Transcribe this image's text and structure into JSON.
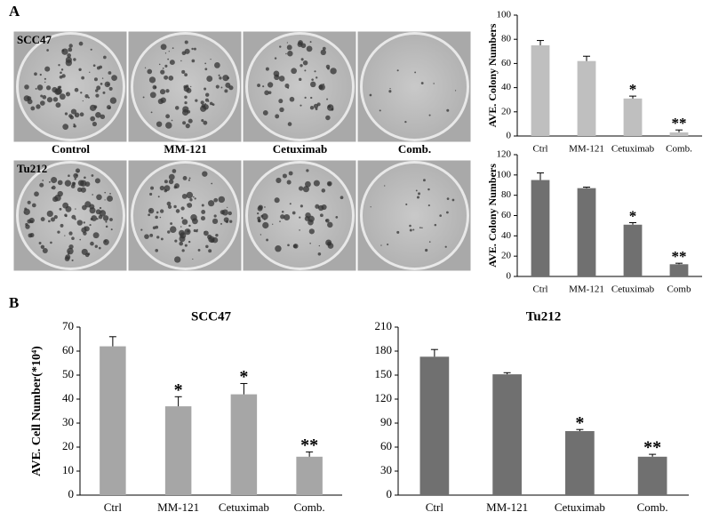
{
  "panels": [
    "A",
    "B"
  ],
  "photos": {
    "rows": [
      "SCC47",
      "Tu212"
    ],
    "columns": [
      "Control",
      "MM-121",
      "Cetuximab",
      "Comb."
    ]
  },
  "chart_data": [
    {
      "type": "bar",
      "ylabel": "AVE. Colony Numbers",
      "categories": [
        "Ctrl",
        "MM-121",
        "Cetuximab",
        "Comb."
      ],
      "values": [
        75,
        62,
        31,
        3
      ],
      "errors": [
        4,
        4,
        2,
        2
      ],
      "significance": [
        null,
        null,
        "*",
        "**"
      ],
      "color": "#bfbfbf",
      "ylim": [
        0,
        100
      ],
      "yticks": [
        0,
        20,
        40,
        60,
        80,
        100
      ]
    },
    {
      "type": "bar",
      "ylabel": "AVE. Colony Numbers",
      "categories": [
        "Ctrl",
        "MM-121",
        "Cetuximab",
        "Comb"
      ],
      "values": [
        95,
        87,
        51,
        12
      ],
      "errors": [
        7,
        1,
        2,
        1
      ],
      "significance": [
        null,
        null,
        "*",
        "**"
      ],
      "color": "#707070",
      "ylim": [
        0,
        120
      ],
      "yticks": [
        0,
        20,
        40,
        60,
        80,
        100,
        120
      ]
    },
    {
      "type": "bar",
      "title": "SCC47",
      "ylabel": "AVE. Cell Number(*10⁴)",
      "categories": [
        "Ctrl",
        "MM-121",
        "Cetuximab",
        "Comb."
      ],
      "values": [
        62,
        37,
        42,
        16
      ],
      "errors": [
        4,
        4,
        4.5,
        2
      ],
      "significance": [
        null,
        "*",
        "*",
        "**"
      ],
      "color": "#a6a6a6",
      "ylim": [
        0,
        70
      ],
      "yticks": [
        0,
        10,
        20,
        30,
        40,
        50,
        60,
        70
      ]
    },
    {
      "type": "bar",
      "title": "Tu212",
      "categories": [
        "Ctrl",
        "MM-121",
        "Cetuximab",
        "Comb."
      ],
      "values": [
        173,
        151,
        80,
        48
      ],
      "errors": [
        9,
        2,
        2,
        3
      ],
      "significance": [
        null,
        null,
        "*",
        "**"
      ],
      "color": "#707070",
      "ylim": [
        0,
        210
      ],
      "yticks": [
        0,
        30,
        60,
        90,
        120,
        150,
        180,
        210
      ]
    }
  ]
}
